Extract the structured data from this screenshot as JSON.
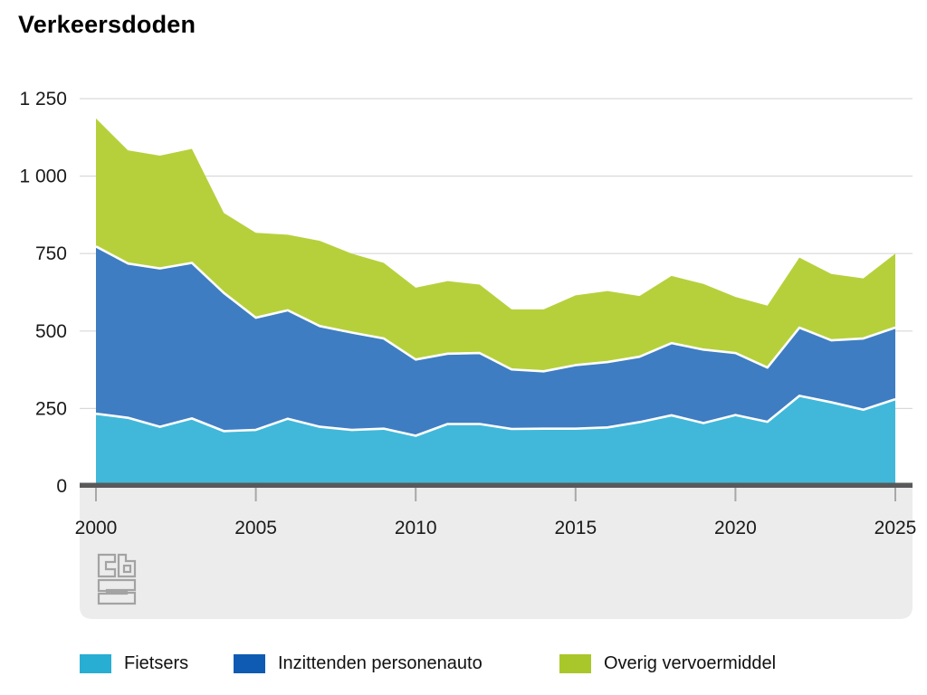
{
  "title": "Verkeersdoden",
  "chart_data": {
    "type": "area",
    "stacked": true,
    "x": [
      2000,
      2001,
      2002,
      2003,
      2004,
      2005,
      2006,
      2007,
      2008,
      2009,
      2010,
      2011,
      2012,
      2013,
      2014,
      2015,
      2016,
      2017,
      2018,
      2019,
      2020,
      2021,
      2022,
      2023,
      2024,
      2025
    ],
    "series": [
      {
        "name": "Fietsers",
        "area_color": "#41b8da",
        "legend_color": "#29aed3",
        "values": [
          233,
          220,
          191,
          218,
          177,
          181,
          217,
          191,
          181,
          185,
          162,
          200,
          200,
          184,
          185,
          185,
          189,
          206,
          228,
          203,
          229,
          207,
          291,
          270,
          246,
          280
        ]
      },
      {
        "name": "Inzittenden personenauto",
        "area_color": "#3e7dc2",
        "legend_color": "#0f5bb4",
        "values": [
          540,
          498,
          511,
          502,
          446,
          362,
          350,
          325,
          314,
          291,
          246,
          227,
          229,
          192,
          185,
          205,
          211,
          211,
          233,
          237,
          200,
          175,
          220,
          200,
          230,
          231
        ]
      },
      {
        "name": "Overig vervoermiddel",
        "area_color": "#b6d03c",
        "legend_color": "#a9c72a",
        "values": [
          413,
          365,
          364,
          368,
          258,
          274,
          244,
          275,
          255,
          244,
          232,
          234,
          221,
          194,
          200,
          225,
          229,
          196,
          217,
          212,
          181,
          200,
          226,
          214,
          194,
          239
        ]
      }
    ],
    "totals": [
      1186,
      1083,
      1066,
      1088,
      881,
      817,
      811,
      791,
      750,
      720,
      640,
      661,
      650,
      570,
      570,
      615,
      629,
      613,
      678,
      652,
      610,
      582,
      737,
      684,
      670,
      750
    ],
    "ylim": [
      0,
      1250
    ],
    "y_ticks": [
      {
        "v": 0,
        "label": "0"
      },
      {
        "v": 250,
        "label": "250"
      },
      {
        "v": 500,
        "label": "500"
      },
      {
        "v": 750,
        "label": "750"
      },
      {
        "v": 1000,
        "label": "1 000"
      },
      {
        "v": 1250,
        "label": "1 250"
      }
    ],
    "x_ticks": [
      {
        "v": 2000,
        "label": "2000"
      },
      {
        "v": 2005,
        "label": "2005"
      },
      {
        "v": 2010,
        "label": "2010"
      },
      {
        "v": 2015,
        "label": "2015"
      },
      {
        "v": 2020,
        "label": "2020"
      },
      {
        "v": 2025,
        "label": "2025"
      }
    ],
    "grid": true,
    "legend_position": "bottom",
    "separator_line_color": "#ffffff"
  },
  "branding": {
    "logo": "cbs-logo"
  },
  "colors": {
    "gridline": "#d9d9d9",
    "axis": "#58595b",
    "footer_band": "#ececec",
    "tick": "#a8a8a8",
    "label_text": "#1a1a1a",
    "logo_stroke": "#a3a3a3"
  }
}
